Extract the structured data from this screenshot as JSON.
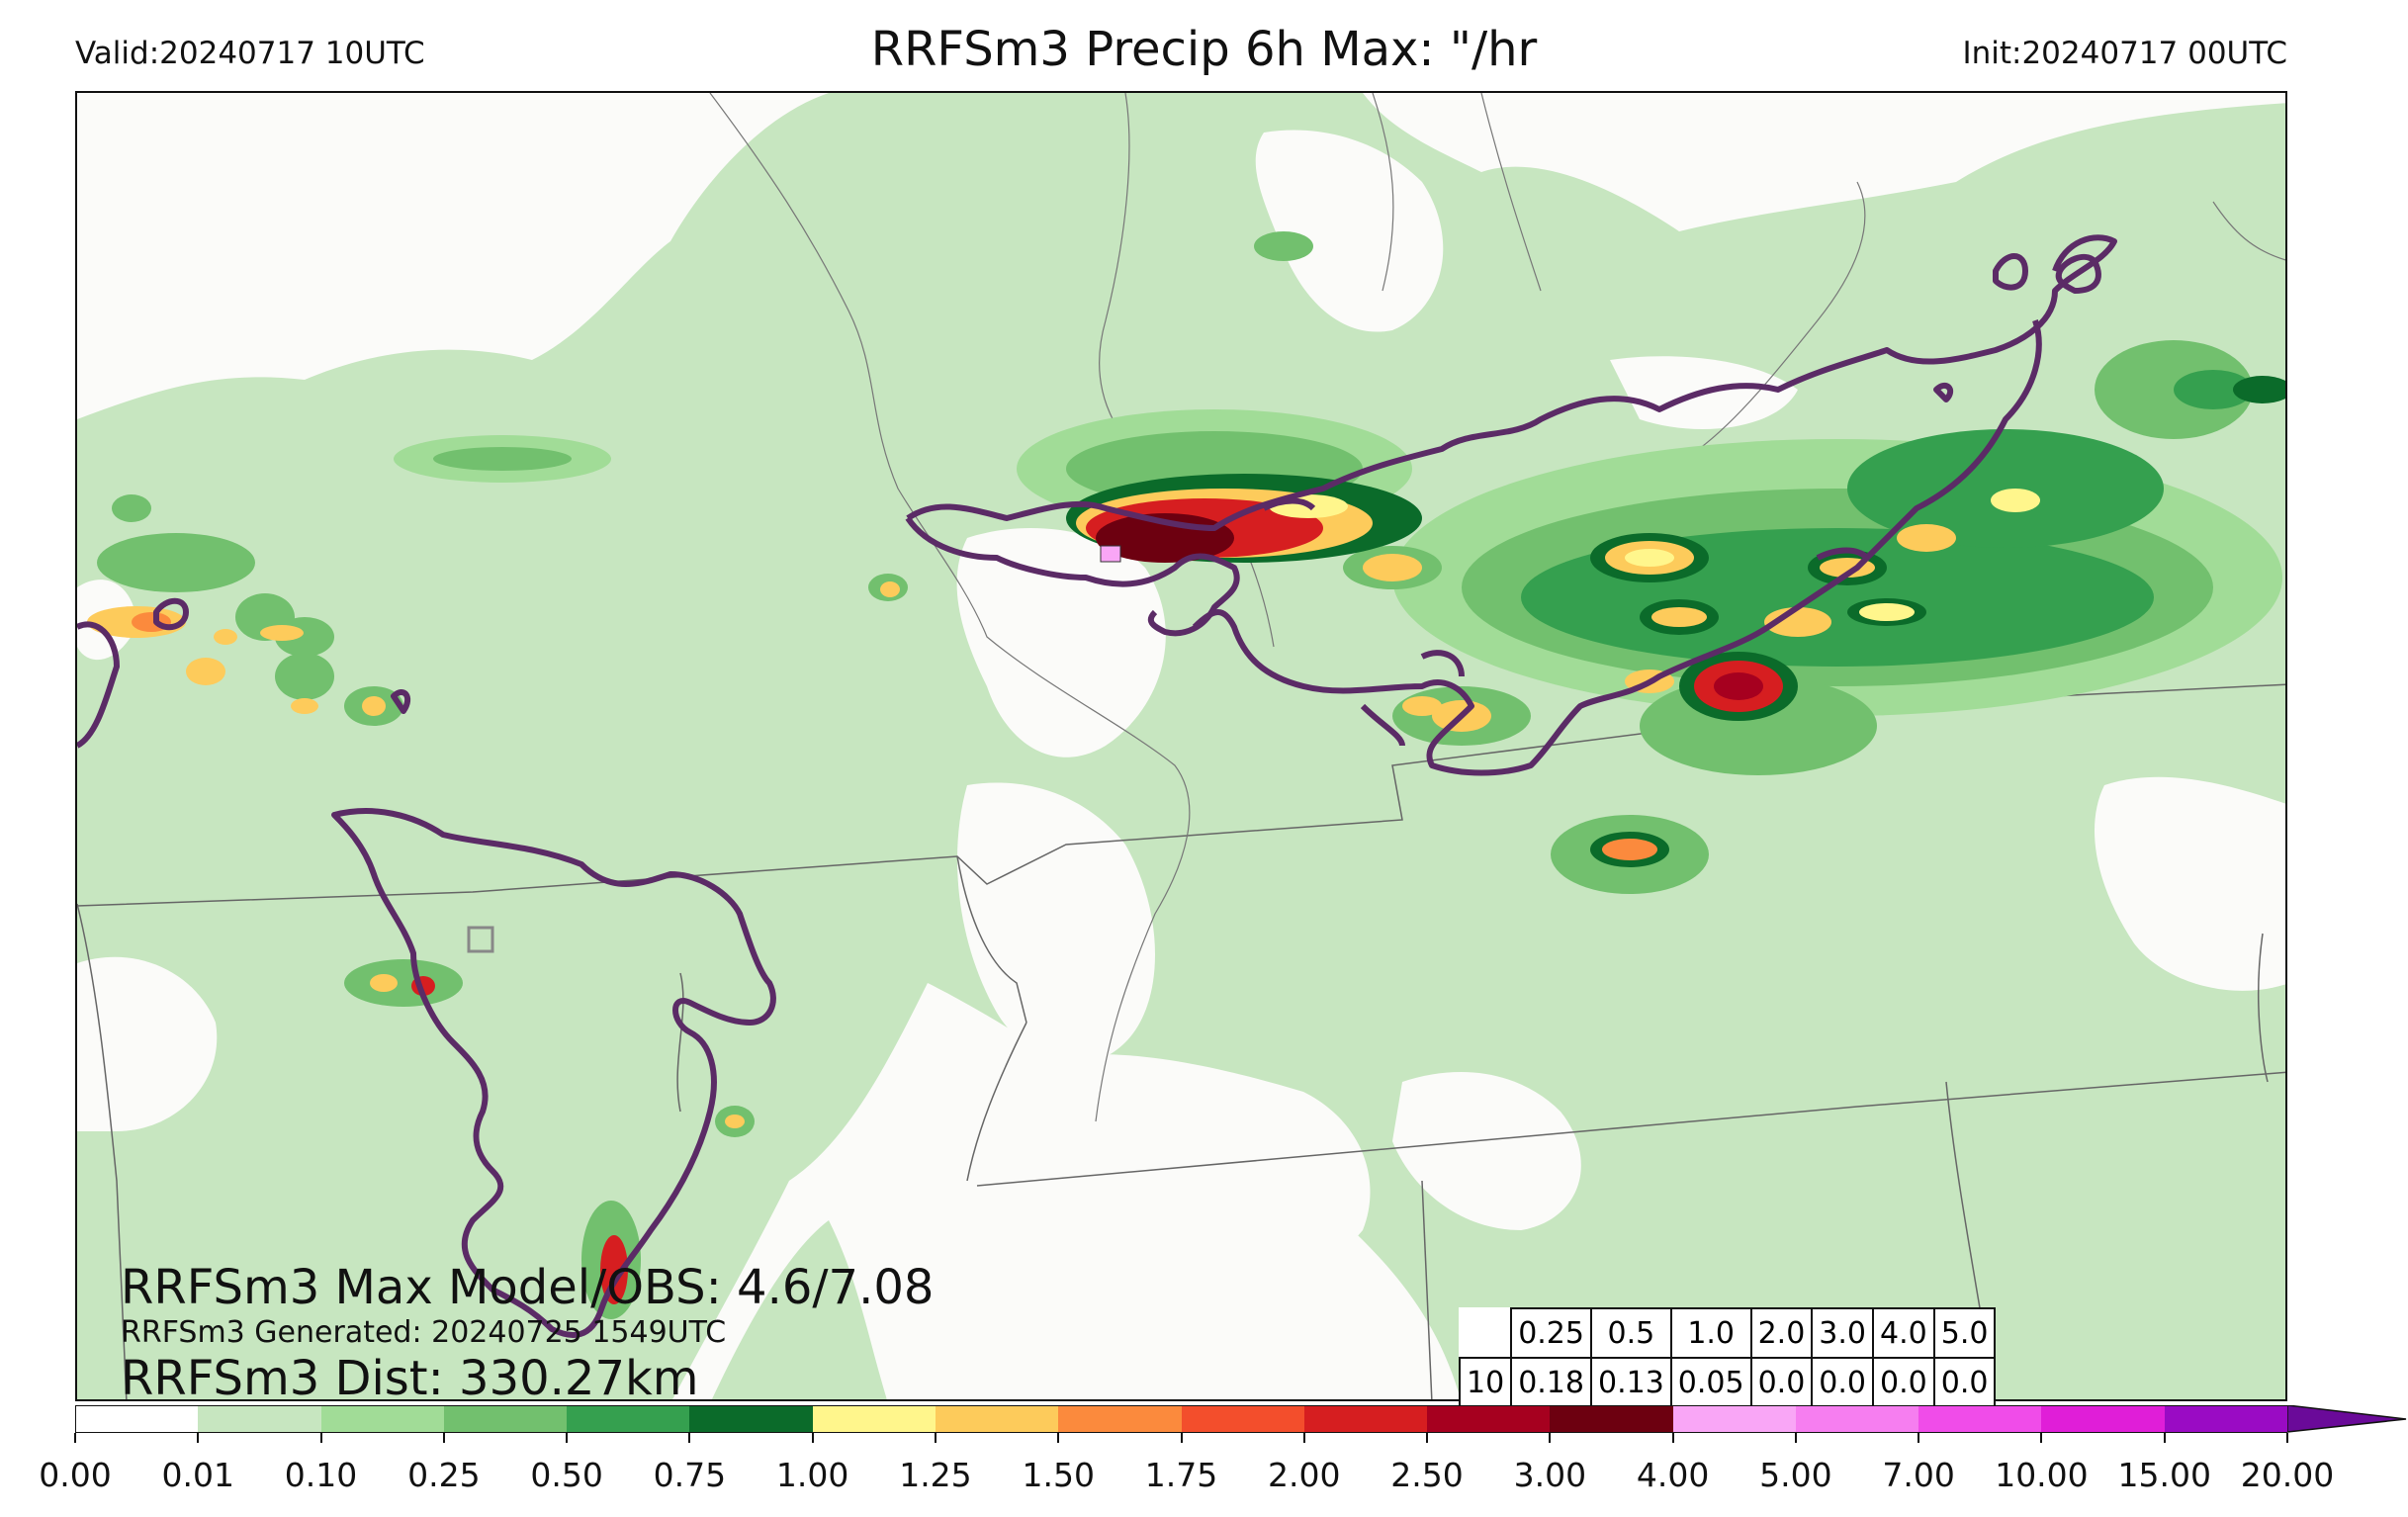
{
  "header": {
    "valid": "Valid:20240717 10UTC",
    "title": "RRFSm3 Precip 6h Max: \"/hr",
    "init": "Init:20240717 00UTC"
  },
  "annotations": {
    "max_model_obs": "RRFSm3 Max Model/OBS: 4.6/7.08",
    "generated": "RRFSm3 Generated: 20240725 1549UTC",
    "dist": "RRFSm3 Dist: 330.27km"
  },
  "stats_table": {
    "thresholds": [
      "0.25",
      "0.5",
      "1.0",
      "2.0",
      "3.0",
      "4.0",
      "5.0"
    ],
    "row_label": "10",
    "values": [
      "0.18",
      "0.13",
      "0.05",
      "0.0",
      "0.0",
      "0.0",
      "0.0"
    ]
  },
  "colorbar": {
    "ticks": [
      "0.00",
      "0.01",
      "0.10",
      "0.25",
      "0.50",
      "0.75",
      "1.00",
      "1.25",
      "1.50",
      "1.75",
      "2.00",
      "2.50",
      "3.00",
      "4.00",
      "5.00",
      "7.00",
      "10.00",
      "15.00",
      "20.00"
    ],
    "colors": [
      "#ffffff",
      "#c7e6c0",
      "#a1dc97",
      "#72c06e",
      "#35a04f",
      "#0b6b2a",
      "#fff68c",
      "#fdcb5b",
      "#fb8a3d",
      "#f34e2c",
      "#d61e20",
      "#a6001f",
      "#6d0010",
      "#f9a6f6",
      "#f67ef0",
      "#f04ce9",
      "#e01ed8",
      "#9a0bc4"
    ],
    "extend_color": "#6a0a99"
  },
  "map_colors": {
    "light_green": "#c7e6c0",
    "green_2": "#a1dc97",
    "green_3": "#72c06e",
    "green_4": "#35a04f",
    "dark_green": "#0b6b2a",
    "yellow": "#fff68c",
    "orange": "#fdcb5b",
    "red": "#d61e20",
    "dark_red": "#6d0010",
    "pink": "#f9a6f6",
    "obs_contour": "#5b2b66",
    "borders": "#666666"
  }
}
